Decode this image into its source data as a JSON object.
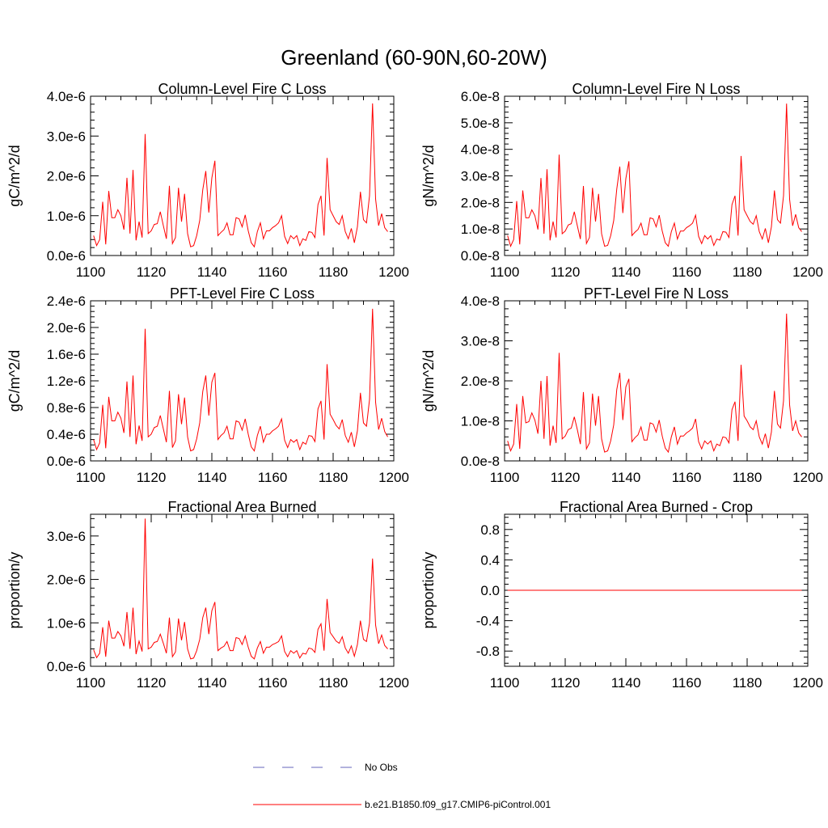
{
  "figure": {
    "title": "Greenland (60-90N,60-20W)"
  },
  "legend": {
    "placement": "bottom-center",
    "entries": [
      {
        "label": "No Obs",
        "color": "#6666bb",
        "style": "dashed"
      },
      {
        "label": "b.e21.B1850.f09_g17.CMIP6-piControl.001",
        "color": "#ff0000",
        "style": "solid"
      }
    ]
  },
  "chart_data": [
    {
      "type": "line",
      "title": "Column-Level Fire C Loss",
      "xlabel": "",
      "ylabel": "gC/m^2/d",
      "xlim": [
        1100,
        1200
      ],
      "ylim": [
        0,
        4e-06
      ],
      "xticks": [
        "1100",
        "1120",
        "1140",
        "1160",
        "1180",
        "1200"
      ],
      "yticks": [
        {
          "v": 0,
          "label": "0.0e-6"
        },
        {
          "v": 1e-06,
          "label": "1.0e-6"
        },
        {
          "v": 2e-06,
          "label": "2.0e-6"
        },
        {
          "v": 3e-06,
          "label": "3.0e-6"
        },
        {
          "v": 4e-06,
          "label": "4.0e-6"
        }
      ],
      "series": [
        {
          "name": "b.e21.B1850.f09_g17.CMIP6-piControl.001",
          "x_start": 1101,
          "x_step": 1,
          "values": [
            5e-07,
            2.5e-07,
            4e-07,
            1.35e-06,
            2.8e-07,
            1.62e-06,
            9.5e-07,
            9.5e-07,
            1.15e-06,
            1e-06,
            6.5e-07,
            1.95e-06,
            5.5e-07,
            2.15e-06,
            3.8e-07,
            8.5e-07,
            4.5e-07,
            3.05e-06,
            5.5e-07,
            6.2e-07,
            7.8e-07,
            8e-07,
            1.1e-06,
            7.5e-07,
            4.2e-07,
            1.75e-06,
            3e-07,
            4.5e-07,
            1.7e-06,
            8.5e-07,
            1.55e-06,
            5.5e-07,
            2.2e-07,
            2.5e-07,
            5e-07,
            8.8e-07,
            1.65e-06,
            2.12e-06,
            1.08e-06,
            1.95e-06,
            2.38e-06,
            5e-07,
            5.8e-07,
            6.5e-07,
            8.2e-07,
            5.2e-07,
            5.2e-07,
            9.5e-07,
            9.2e-07,
            7.2e-07,
            1.02e-06,
            6.2e-07,
            3.2e-07,
            2.2e-07,
            6e-07,
            8.2e-07,
            4.2e-07,
            6.2e-07,
            6.2e-07,
            7e-07,
            7.5e-07,
            8.2e-07,
            1e-06,
            4.8e-07,
            3e-07,
            5e-07,
            4.2e-07,
            5e-07,
            2.5e-07,
            4.2e-07,
            3.8e-07,
            6e-07,
            5.8e-07,
            4.5e-07,
            1.28e-06,
            1.5e-06,
            5e-07,
            2.45e-06,
            1.15e-06,
            1e-06,
            8.5e-07,
            7.8e-07,
            1e-06,
            6e-07,
            4.2e-07,
            6.8e-07,
            3.2e-07,
            7.2e-07,
            1.6e-06,
            9e-07,
            8.2e-07,
            1.5e-06,
            3.82e-06,
            1.42e-06,
            7.5e-07,
            1.05e-06,
            7e-07,
            6e-07
          ]
        }
      ]
    },
    {
      "type": "line",
      "title": "Column-Level Fire N Loss",
      "xlabel": "",
      "ylabel": "gN/m^2/d",
      "xlim": [
        1100,
        1200
      ],
      "ylim": [
        0,
        6e-08
      ],
      "xticks": [
        "1100",
        "1120",
        "1140",
        "1160",
        "1180",
        "1200"
      ],
      "yticks": [
        {
          "v": 0,
          "label": "0.0e-8"
        },
        {
          "v": 1e-08,
          "label": "1.0e-8"
        },
        {
          "v": 2e-08,
          "label": "2.0e-8"
        },
        {
          "v": 3e-08,
          "label": "3.0e-8"
        },
        {
          "v": 4e-08,
          "label": "4.0e-8"
        },
        {
          "v": 5e-08,
          "label": "5.0e-8"
        },
        {
          "v": 6e-08,
          "label": "6.0e-8"
        }
      ],
      "series": [
        {
          "name": "b.e21.B1850.f09_g17.CMIP6-piControl.001",
          "x_start": 1101,
          "x_step": 1,
          "values": [
            7.5e-09,
            3.5e-09,
            6e-09,
            2.05e-08,
            4.2e-09,
            2.45e-08,
            1.42e-08,
            1.42e-08,
            1.72e-08,
            1.5e-08,
            9.8e-09,
            2.92e-08,
            8.2e-09,
            3.25e-08,
            5.7e-09,
            1.28e-08,
            6.8e-09,
            3.8e-08,
            8.2e-09,
            9.2e-09,
            1.15e-08,
            1.2e-08,
            1.65e-08,
            1.12e-08,
            6.2e-09,
            2.62e-08,
            4.5e-09,
            6.8e-09,
            2.55e-08,
            1.28e-08,
            2.32e-08,
            8.2e-09,
            3.5e-09,
            3.8e-09,
            7.5e-09,
            1.32e-08,
            2.5e-08,
            3.35e-08,
            1.6e-08,
            2.9e-08,
            3.55e-08,
            7.5e-09,
            8.8e-09,
            9.8e-09,
            1.22e-08,
            7.8e-09,
            7.8e-09,
            1.42e-08,
            1.38e-08,
            1.08e-08,
            1.52e-08,
            9.2e-09,
            4.8e-09,
            3.5e-09,
            9e-09,
            1.22e-08,
            6.2e-09,
            9.2e-09,
            9.2e-09,
            1.05e-08,
            1.12e-08,
            1.22e-08,
            1.52e-08,
            7.2e-09,
            4.5e-09,
            7.5e-09,
            6.2e-09,
            7.5e-09,
            3.8e-09,
            6.2e-09,
            5.8e-09,
            9e-09,
            8.8e-09,
            6.8e-09,
            1.92e-08,
            2.25e-08,
            7.5e-09,
            3.75e-08,
            1.72e-08,
            1.5e-08,
            1.28e-08,
            1.18e-08,
            1.5e-08,
            9e-09,
            6.2e-09,
            1.02e-08,
            4.8e-09,
            1.08e-08,
            2.45e-08,
            1.35e-08,
            1.22e-08,
            2.25e-08,
            5.72e-08,
            2.12e-08,
            1.12e-08,
            1.55e-08,
            1.05e-08,
            9e-09
          ]
        }
      ]
    },
    {
      "type": "line",
      "title": "PFT-Level Fire C Loss",
      "xlabel": "",
      "ylabel": "gC/m^2/d",
      "xlim": [
        1100,
        1200
      ],
      "ylim": [
        0,
        2.4e-06
      ],
      "xticks": [
        "1100",
        "1120",
        "1140",
        "1160",
        "1180",
        "1200"
      ],
      "yticks": [
        {
          "v": 0,
          "label": "0.0e-6"
        },
        {
          "v": 4e-07,
          "label": "0.4e-6"
        },
        {
          "v": 8e-07,
          "label": "0.8e-6"
        },
        {
          "v": 1.2e-06,
          "label": "1.2e-6"
        },
        {
          "v": 1.6e-06,
          "label": "1.6e-6"
        },
        {
          "v": 2e-06,
          "label": "2.0e-6"
        },
        {
          "v": 2.4e-06,
          "label": "2.4e-6"
        }
      ],
      "series": [
        {
          "name": "b.e21.B1850.f09_g17.CMIP6-piControl.001",
          "x_start": 1101,
          "x_step": 1,
          "values": [
            3.2e-07,
            1.7e-07,
            2.7e-07,
            8.4e-07,
            1.9e-07,
            9.6e-07,
            6e-07,
            6e-07,
            7.3e-07,
            6.4e-07,
            4.2e-07,
            1.19e-06,
            3.6e-07,
            1.28e-06,
            2.5e-07,
            5.3e-07,
            3e-07,
            1.98e-06,
            3.6e-07,
            4e-07,
            5e-07,
            5.2e-07,
            6.8e-07,
            4.8e-07,
            2.8e-07,
            1.05e-06,
            2e-07,
            3e-07,
            1e-06,
            5.5e-07,
            9.5e-07,
            3.6e-07,
            1.5e-07,
            1.7e-07,
            3.3e-07,
            5.7e-07,
            1.04e-06,
            1.28e-06,
            6.8e-07,
            1.18e-06,
            1.32e-06,
            3.2e-07,
            3.8e-07,
            4.2e-07,
            5.2e-07,
            3.3e-07,
            3.3e-07,
            6e-07,
            5.8e-07,
            4.6e-07,
            6.3e-07,
            4e-07,
            2.1e-07,
            1.5e-07,
            3.8e-07,
            5.2e-07,
            2.8e-07,
            4e-07,
            4e-07,
            4.5e-07,
            4.8e-07,
            5.2e-07,
            6.3e-07,
            3.1e-07,
            2e-07,
            3.2e-07,
            2.8e-07,
            3.2e-07,
            1.7e-07,
            2.8e-07,
            2.5e-07,
            3.8e-07,
            3.7e-07,
            2.9e-07,
            7.8e-07,
            9e-07,
            3.2e-07,
            1.45e-06,
            7e-07,
            6.2e-07,
            5.3e-07,
            4.8e-07,
            6.2e-07,
            3.8e-07,
            2.8e-07,
            4.3e-07,
            2.1e-07,
            4.5e-07,
            1.02e-06,
            5.7e-07,
            5.2e-07,
            9.2e-07,
            2.28e-06,
            8.8e-07,
            4.7e-07,
            6.4e-07,
            4.4e-07,
            3.6e-07
          ]
        }
      ]
    },
    {
      "type": "line",
      "title": "PFT-Level Fire N Loss",
      "xlabel": "",
      "ylabel": "gN/m^2/d",
      "xlim": [
        1100,
        1200
      ],
      "ylim": [
        0,
        4e-08
      ],
      "xticks": [
        "1100",
        "1120",
        "1140",
        "1160",
        "1180",
        "1200"
      ],
      "yticks": [
        {
          "v": 0,
          "label": "0.0e-8"
        },
        {
          "v": 1e-08,
          "label": "1.0e-8"
        },
        {
          "v": 2e-08,
          "label": "2.0e-8"
        },
        {
          "v": 3e-08,
          "label": "3.0e-8"
        },
        {
          "v": 4e-08,
          "label": "4.0e-8"
        }
      ],
      "series": [
        {
          "name": "b.e21.B1850.f09_g17.CMIP6-piControl.001",
          "x_start": 1101,
          "x_step": 1,
          "values": [
            5e-09,
            2.5e-09,
            4.2e-09,
            1.42e-08,
            3e-09,
            1.62e-08,
            9.5e-09,
            9.8e-09,
            1.2e-08,
            1.02e-08,
            6.8e-09,
            2e-08,
            5.5e-09,
            2.12e-08,
            3.8e-09,
            8.8e-09,
            4.5e-09,
            2.7e-08,
            5.5e-09,
            6.2e-09,
            7.8e-09,
            8.2e-09,
            1.1e-08,
            7.8e-09,
            4.2e-09,
            1.72e-08,
            3e-09,
            4.5e-09,
            1.68e-08,
            8.8e-09,
            1.62e-08,
            5.5e-09,
            2.2e-09,
            2.5e-09,
            5e-09,
            9e-09,
            1.78e-08,
            2.2e-08,
            1.02e-08,
            1.85e-08,
            2.05e-08,
            4.8e-09,
            5.8e-09,
            6.5e-09,
            8.5e-09,
            5.2e-09,
            5.2e-09,
            9.5e-09,
            9.2e-09,
            7.2e-09,
            1.02e-08,
            6.2e-09,
            3.2e-09,
            2.2e-09,
            6e-09,
            8.5e-09,
            4.2e-09,
            6.2e-09,
            6.2e-09,
            7e-09,
            7.5e-09,
            8.2e-09,
            1.05e-08,
            4.8e-09,
            3e-09,
            5e-09,
            4.2e-09,
            5e-09,
            2.5e-09,
            4.2e-09,
            3.8e-09,
            6e-09,
            5.8e-09,
            4.5e-09,
            1.28e-08,
            1.48e-08,
            5e-09,
            2.4e-08,
            1.12e-08,
            1e-08,
            8.5e-09,
            7.8e-09,
            1e-08,
            6e-09,
            4.2e-09,
            6.8e-09,
            3.2e-09,
            7.2e-09,
            1.75e-08,
            9.2e-09,
            8.2e-09,
            1.5e-08,
            3.68e-08,
            1.4e-08,
            7.5e-09,
            1e-08,
            7e-09,
            6e-09
          ]
        }
      ]
    },
    {
      "type": "line",
      "title": "Fractional Area Burned",
      "xlabel": "",
      "ylabel": "proportion/y",
      "xlim": [
        1100,
        1200
      ],
      "ylim": [
        0,
        3.5e-06
      ],
      "xticks": [
        "1100",
        "1120",
        "1140",
        "1160",
        "1180",
        "1200"
      ],
      "yticks": [
        {
          "v": 0,
          "label": "0.0e-6"
        },
        {
          "v": 1e-06,
          "label": "1.0e-6"
        },
        {
          "v": 2e-06,
          "label": "2.0e-6"
        },
        {
          "v": 3e-06,
          "label": "3.0e-6"
        }
      ],
      "series": [
        {
          "name": "b.e21.B1850.f09_g17.CMIP6-piControl.001",
          "x_start": 1101,
          "x_step": 1,
          "values": [
            3.8e-07,
            2e-07,
            3e-07,
            9e-07,
            2.2e-07,
            1.05e-06,
            6.5e-07,
            6.5e-07,
            8e-07,
            7e-07,
            4.6e-07,
            1.25e-06,
            4e-07,
            1.35e-06,
            2.8e-07,
            5.8e-07,
            3.4e-07,
            3.4e-06,
            4e-07,
            4.4e-07,
            5.5e-07,
            5.7e-07,
            7.4e-07,
            5.3e-07,
            3e-07,
            1.12e-06,
            2.2e-07,
            3.3e-07,
            1.1e-06,
            6e-07,
            1.02e-06,
            4e-07,
            1.7e-07,
            1.9e-07,
            3.6e-07,
            6.2e-07,
            1.12e-06,
            1.35e-06,
            7.4e-07,
            1.28e-06,
            1.48e-06,
            3.6e-07,
            4.2e-07,
            4.6e-07,
            5.7e-07,
            3.6e-07,
            3.6e-07,
            6.6e-07,
            6.4e-07,
            5e-07,
            7e-07,
            4.4e-07,
            2.3e-07,
            1.7e-07,
            4.2e-07,
            5.7e-07,
            3e-07,
            4.4e-07,
            4.4e-07,
            5e-07,
            5.3e-07,
            5.7e-07,
            7e-07,
            3.4e-07,
            2.2e-07,
            3.6e-07,
            3e-07,
            3.6e-07,
            1.9e-07,
            3e-07,
            2.8e-07,
            4.2e-07,
            4e-07,
            3.2e-07,
            8.5e-07,
            9.8e-07,
            3.6e-07,
            1.55e-06,
            7.8e-07,
            6.8e-07,
            5.8e-07,
            5.3e-07,
            6.8e-07,
            4.2e-07,
            3e-07,
            4.7e-07,
            2.3e-07,
            5e-07,
            1.05e-06,
            6.2e-07,
            5.7e-07,
            1e-06,
            2.48e-06,
            9.5e-07,
            5.2e-07,
            7.2e-07,
            4.8e-07,
            4e-07
          ]
        }
      ]
    },
    {
      "type": "line",
      "title": "Fractional Area Burned - Crop",
      "xlabel": "",
      "ylabel": "proportion/y",
      "xlim": [
        1100,
        1200
      ],
      "ylim": [
        -1.0,
        1.0
      ],
      "xticks": [
        "1100",
        "1120",
        "1140",
        "1160",
        "1180",
        "1200"
      ],
      "yticks": [
        {
          "v": -0.8,
          "label": "-0.8"
        },
        {
          "v": -0.4,
          "label": "-0.4"
        },
        {
          "v": 0,
          "label": "0.0"
        },
        {
          "v": 0.4,
          "label": "0.4"
        },
        {
          "v": 0.8,
          "label": "0.8"
        }
      ],
      "series": [
        {
          "name": "b.e21.B1850.f09_g17.CMIP6-piControl.001",
          "x_start": 1101,
          "x_step": 1,
          "values": [
            0,
            0,
            0,
            0,
            0,
            0,
            0,
            0,
            0,
            0,
            0,
            0,
            0,
            0,
            0,
            0,
            0,
            0,
            0,
            0,
            0,
            0,
            0,
            0,
            0,
            0,
            0,
            0,
            0,
            0,
            0,
            0,
            0,
            0,
            0,
            0,
            0,
            0,
            0,
            0,
            0,
            0,
            0,
            0,
            0,
            0,
            0,
            0,
            0,
            0,
            0,
            0,
            0,
            0,
            0,
            0,
            0,
            0,
            0,
            0,
            0,
            0,
            0,
            0,
            0,
            0,
            0,
            0,
            0,
            0,
            0,
            0,
            0,
            0,
            0,
            0,
            0,
            0,
            0,
            0,
            0,
            0,
            0,
            0,
            0,
            0,
            0,
            0,
            0,
            0,
            0,
            0,
            0,
            0,
            0,
            0,
            0,
            0
          ]
        }
      ]
    }
  ]
}
